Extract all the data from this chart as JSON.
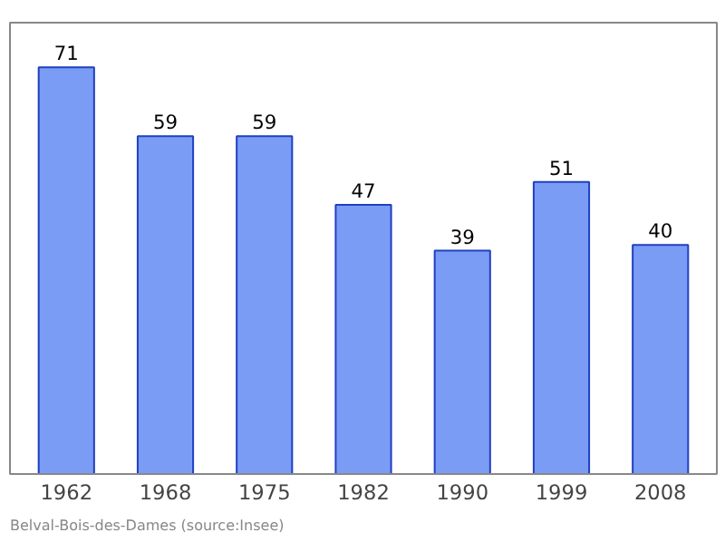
{
  "chart_data": {
    "type": "bar",
    "categories": [
      "1962",
      "1968",
      "1975",
      "1982",
      "1990",
      "1999",
      "2008"
    ],
    "values": [
      71,
      59,
      59,
      47,
      39,
      51,
      40
    ],
    "color": "#7b9cf5",
    "data_labels": true,
    "grid": false,
    "annotations": [
      "Belval-Bois-des-Dames    (source:Insee)"
    ]
  }
}
